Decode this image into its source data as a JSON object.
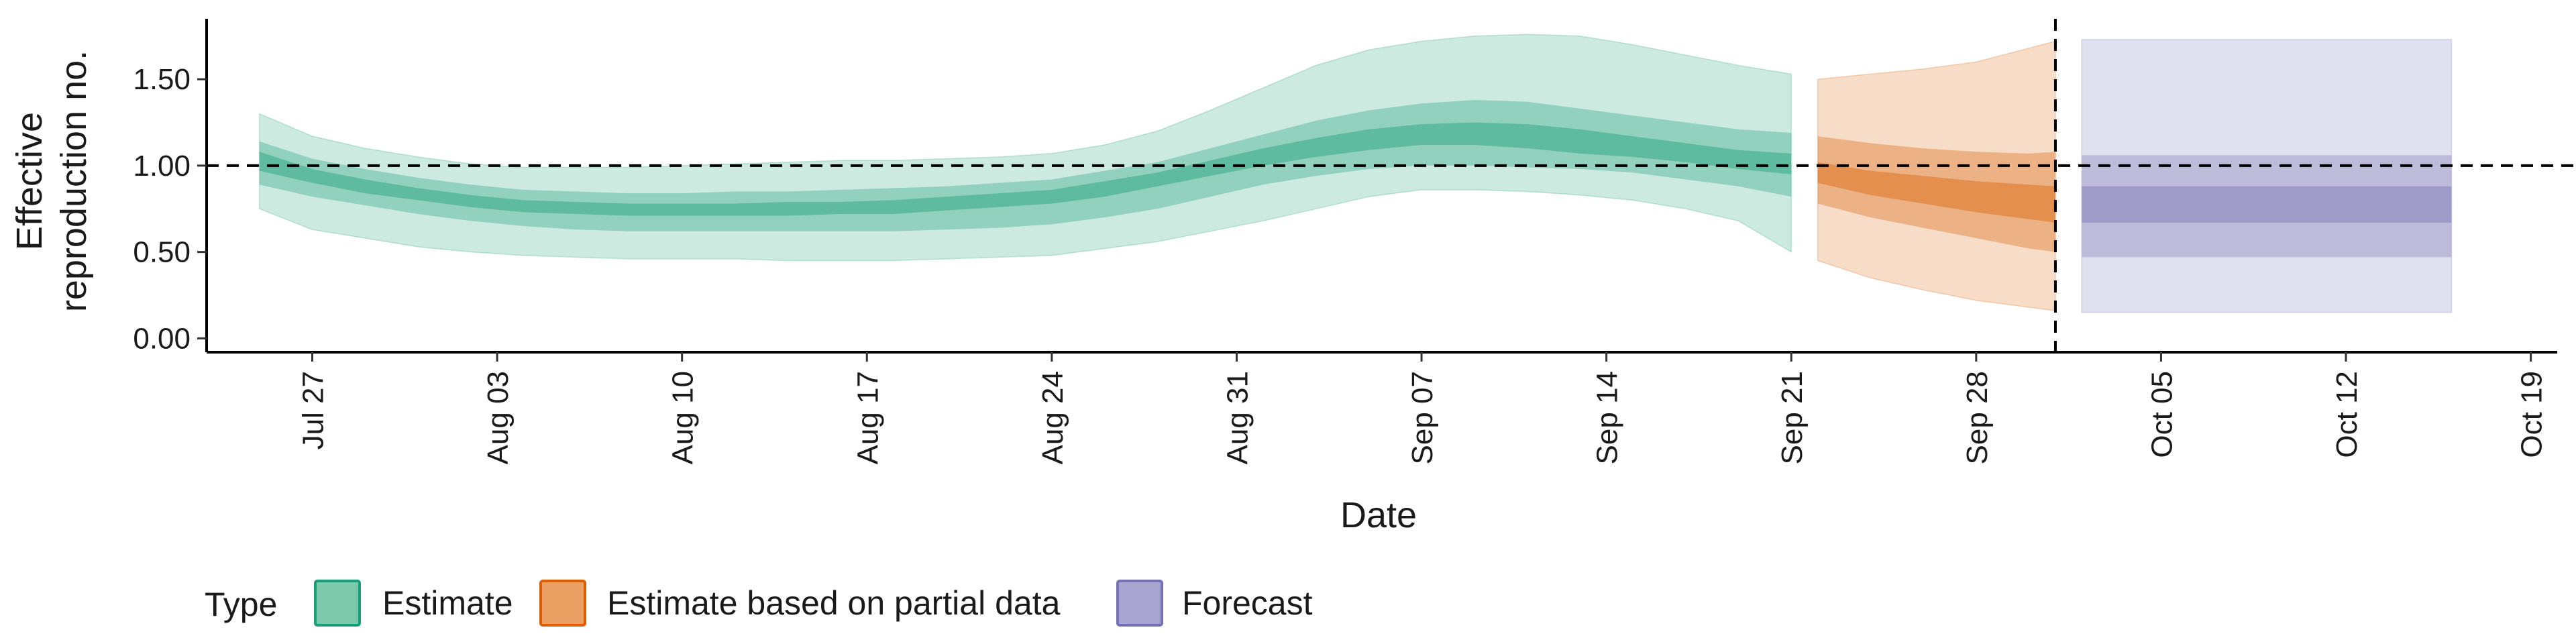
{
  "chart_data": {
    "type": "area",
    "xlabel": "Date",
    "ylabel": "Effective reproduction no.",
    "ylabel_lines": [
      "Effective",
      "reproduction no."
    ],
    "x_tick_labels": [
      "Jul 27",
      "Aug 03",
      "Aug 10",
      "Aug 17",
      "Aug 24",
      "Aug 31",
      "Sep 07",
      "Sep 14",
      "Sep 21",
      "Sep 28",
      "Oct 05",
      "Oct 12",
      "Oct 19"
    ],
    "x_ticks": [
      "2020-07-27",
      "2020-08-03",
      "2020-08-10",
      "2020-08-17",
      "2020-08-24",
      "2020-08-31",
      "2020-09-07",
      "2020-09-14",
      "2020-09-21",
      "2020-09-28",
      "2020-10-05",
      "2020-10-12",
      "2020-10-19"
    ],
    "xlim": [
      "2020-07-23",
      "2020-10-20"
    ],
    "y_tick_labels": [
      "0.00",
      "0.50",
      "1.00",
      "1.50"
    ],
    "y_ticks": [
      0,
      0.5,
      1.0,
      1.5
    ],
    "ylim": [
      -0.08,
      1.85
    ],
    "reference_line_y": 1.0,
    "vertical_line_x": "2020-10-01",
    "legend": {
      "title": "Type",
      "position": "bottom",
      "entries": [
        {
          "label": "Estimate",
          "fill": "#7bc9aa",
          "stroke": "#1b9e77"
        },
        {
          "label": "Estimate based on partial data",
          "fill": "#eaa063",
          "stroke": "#d95f02"
        },
        {
          "label": "Forecast",
          "fill": "#a9a5d1",
          "stroke": "#7570b3"
        }
      ]
    },
    "series": [
      {
        "name": "Estimate",
        "color": "#1b9e77",
        "x": [
          "2020-07-25",
          "2020-07-27",
          "2020-07-29",
          "2020-07-31",
          "2020-08-02",
          "2020-08-04",
          "2020-08-06",
          "2020-08-08",
          "2020-08-10",
          "2020-08-12",
          "2020-08-14",
          "2020-08-16",
          "2020-08-18",
          "2020-08-20",
          "2020-08-22",
          "2020-08-24",
          "2020-08-26",
          "2020-08-28",
          "2020-08-30",
          "2020-09-01",
          "2020-09-03",
          "2020-09-05",
          "2020-09-07",
          "2020-09-09",
          "2020-09-11",
          "2020-09-13",
          "2020-09-15",
          "2020-09-17",
          "2020-09-19",
          "2020-09-21"
        ],
        "outer_lower": [
          0.75,
          0.63,
          0.58,
          0.53,
          0.5,
          0.48,
          0.47,
          0.46,
          0.46,
          0.46,
          0.45,
          0.45,
          0.45,
          0.46,
          0.47,
          0.48,
          0.52,
          0.56,
          0.62,
          0.68,
          0.75,
          0.82,
          0.86,
          0.86,
          0.85,
          0.83,
          0.8,
          0.75,
          0.68,
          0.5
        ],
        "outer_upper": [
          1.3,
          1.17,
          1.1,
          1.05,
          1.01,
          0.99,
          0.99,
          0.99,
          1.0,
          1.01,
          1.02,
          1.03,
          1.03,
          1.04,
          1.05,
          1.07,
          1.12,
          1.2,
          1.32,
          1.45,
          1.58,
          1.67,
          1.72,
          1.75,
          1.76,
          1.75,
          1.7,
          1.64,
          1.58,
          1.53
        ],
        "mid_lower": [
          0.89,
          0.82,
          0.77,
          0.72,
          0.68,
          0.65,
          0.63,
          0.62,
          0.62,
          0.62,
          0.62,
          0.62,
          0.62,
          0.63,
          0.64,
          0.66,
          0.7,
          0.75,
          0.82,
          0.89,
          0.94,
          0.98,
          1.0,
          1.0,
          0.99,
          0.98,
          0.96,
          0.92,
          0.88,
          0.82
        ],
        "mid_upper": [
          1.14,
          1.04,
          0.98,
          0.93,
          0.89,
          0.86,
          0.85,
          0.84,
          0.84,
          0.85,
          0.85,
          0.86,
          0.87,
          0.88,
          0.9,
          0.92,
          0.97,
          1.02,
          1.1,
          1.18,
          1.26,
          1.32,
          1.36,
          1.38,
          1.37,
          1.33,
          1.29,
          1.25,
          1.21,
          1.19
        ],
        "inner_lower": [
          0.97,
          0.9,
          0.84,
          0.8,
          0.76,
          0.73,
          0.72,
          0.71,
          0.71,
          0.71,
          0.71,
          0.72,
          0.72,
          0.74,
          0.76,
          0.78,
          0.82,
          0.88,
          0.94,
          1.0,
          1.05,
          1.09,
          1.12,
          1.12,
          1.1,
          1.07,
          1.05,
          1.02,
          0.98,
          0.95
        ],
        "inner_upper": [
          1.08,
          0.98,
          0.92,
          0.87,
          0.83,
          0.8,
          0.79,
          0.78,
          0.78,
          0.78,
          0.79,
          0.79,
          0.8,
          0.82,
          0.84,
          0.86,
          0.91,
          0.96,
          1.03,
          1.1,
          1.16,
          1.21,
          1.24,
          1.25,
          1.24,
          1.21,
          1.17,
          1.13,
          1.09,
          1.07
        ]
      },
      {
        "name": "Estimate based on partial data",
        "color": "#d95f02",
        "x": [
          "2020-09-22",
          "2020-09-24",
          "2020-09-26",
          "2020-09-28",
          "2020-09-30",
          "2020-10-01"
        ],
        "outer_lower": [
          0.45,
          0.35,
          0.28,
          0.22,
          0.18,
          0.16
        ],
        "outer_upper": [
          1.5,
          1.53,
          1.56,
          1.6,
          1.68,
          1.72
        ],
        "mid_lower": [
          0.78,
          0.7,
          0.64,
          0.58,
          0.52,
          0.5
        ],
        "mid_upper": [
          1.17,
          1.13,
          1.1,
          1.08,
          1.07,
          1.08
        ],
        "inner_lower": [
          0.9,
          0.83,
          0.78,
          0.73,
          0.69,
          0.67
        ],
        "inner_upper": [
          1.02,
          0.97,
          0.94,
          0.91,
          0.89,
          0.88
        ]
      },
      {
        "name": "Forecast",
        "color": "#7570b3",
        "x": [
          "2020-10-02",
          "2020-10-16"
        ],
        "outer_lower": [
          0.15,
          0.15
        ],
        "outer_upper": [
          1.73,
          1.73
        ],
        "mid_lower": [
          0.47,
          0.47
        ],
        "mid_upper": [
          1.06,
          1.06
        ],
        "inner_lower": [
          0.67,
          0.67
        ],
        "inner_upper": [
          0.88,
          0.88
        ]
      }
    ]
  }
}
